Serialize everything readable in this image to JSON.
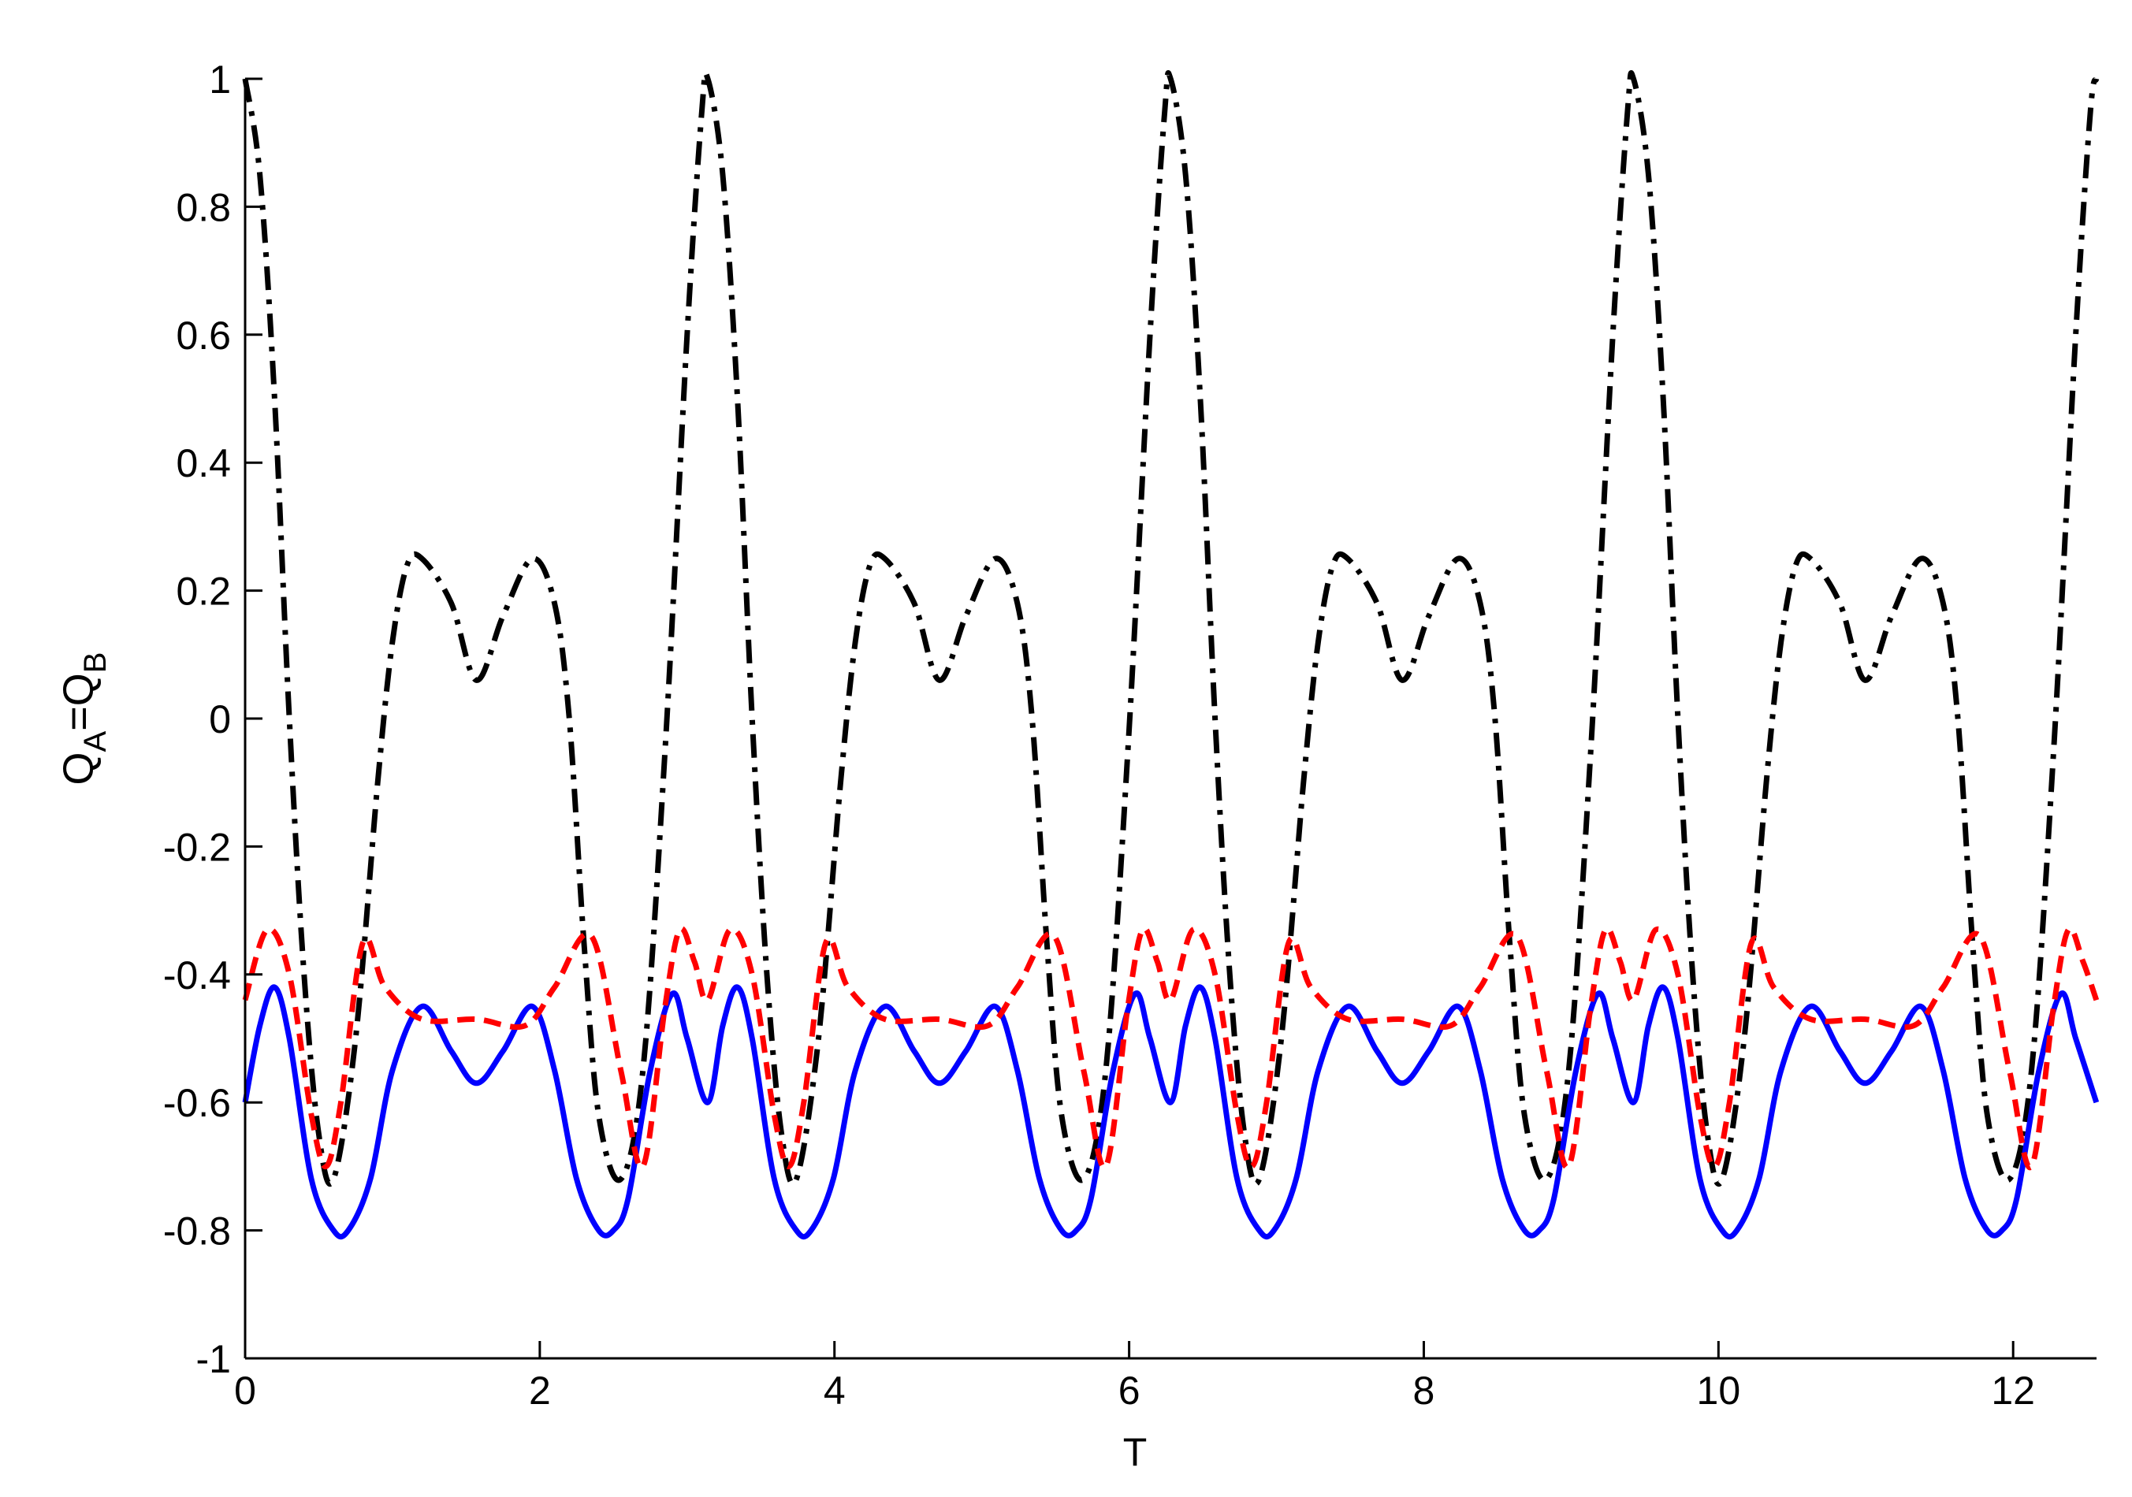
{
  "chart_data": {
    "type": "line",
    "title": "",
    "xlabel": "T",
    "ylabel": {
      "parts": [
        "Q",
        "A",
        "=Q",
        "B"
      ]
    },
    "xlim": [
      0,
      12.566
    ],
    "ylim": [
      -1,
      1
    ],
    "xticks": [
      0,
      2,
      4,
      6,
      8,
      10,
      12
    ],
    "xtick_labels": [
      "0",
      "2",
      "4",
      "6",
      "8",
      "10",
      "12"
    ],
    "yticks": [
      1,
      0.8,
      0.6,
      0.4,
      0.2,
      0,
      -0.2,
      -0.4,
      -0.6,
      -0.8,
      -1
    ],
    "ytick_labels": [
      "1",
      "0.8",
      "0.6",
      "0.4",
      "0.2",
      "0",
      "-0.2",
      "-0.4",
      "-0.6",
      "-0.8",
      "-1"
    ],
    "grid": false,
    "legend": "none",
    "series": [
      {
        "color": "#000000",
        "style": "dash-dot",
        "x": [
          0,
          0.1,
          0.2,
          0.3,
          0.4,
          0.5,
          0.6,
          0.75,
          0.9,
          1.0,
          1.1,
          1.2,
          1.4,
          1.57,
          1.75,
          1.95,
          2.1,
          2.2,
          2.3,
          2.4,
          2.55,
          2.7,
          2.85,
          3.0,
          3.1,
          3.14
        ],
        "values": [
          1.0,
          0.85,
          0.5,
          0.0,
          -0.4,
          -0.65,
          -0.72,
          -0.5,
          -0.1,
          0.12,
          0.24,
          0.25,
          0.18,
          0.06,
          0.16,
          0.25,
          0.18,
          0.0,
          -0.35,
          -0.62,
          -0.72,
          -0.55,
          -0.05,
          0.6,
          0.95,
          1.0
        ]
      },
      {
        "color": "#0000ff",
        "style": "solid",
        "x": [
          0,
          0.1,
          0.2,
          0.3,
          0.45,
          0.6,
          0.7,
          0.85,
          1.0,
          1.2,
          1.4,
          1.57,
          1.75,
          1.95,
          2.1,
          2.25,
          2.4,
          2.5,
          2.6,
          2.75,
          2.9,
          3.0,
          3.14
        ],
        "values": [
          -0.6,
          -0.48,
          -0.42,
          -0.5,
          -0.72,
          -0.8,
          -0.8,
          -0.72,
          -0.55,
          -0.45,
          -0.52,
          -0.57,
          -0.52,
          -0.45,
          -0.55,
          -0.72,
          -0.8,
          -0.8,
          -0.75,
          -0.55,
          -0.43,
          -0.5,
          -0.6
        ]
      },
      {
        "color": "#ff0000",
        "style": "dashed",
        "x": [
          0,
          0.15,
          0.3,
          0.45,
          0.55,
          0.65,
          0.8,
          0.95,
          1.2,
          1.57,
          1.9,
          2.1,
          2.35,
          2.55,
          2.7,
          2.85,
          2.95,
          3.05,
          3.14
        ],
        "values": [
          -0.44,
          -0.33,
          -0.4,
          -0.62,
          -0.7,
          -0.6,
          -0.35,
          -0.42,
          -0.47,
          -0.47,
          -0.48,
          -0.42,
          -0.34,
          -0.55,
          -0.7,
          -0.45,
          -0.33,
          -0.38,
          -0.44
        ]
      }
    ]
  }
}
